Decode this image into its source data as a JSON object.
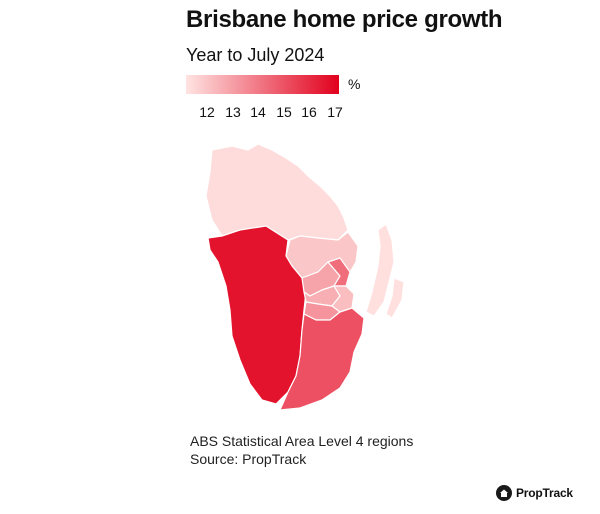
{
  "title": "Brisbane home price growth",
  "subtitle": "Year to July 2024",
  "legend": {
    "unit": "%",
    "ticks": [
      "12",
      "13",
      "14",
      "15",
      "16",
      "17"
    ],
    "min": 11.5,
    "max": 17.5,
    "color_low": "#ffe4e2",
    "color_high": "#e1001d"
  },
  "map": {
    "type": "choropleth",
    "regions": [
      {
        "id": "north",
        "value": 11.7
      },
      {
        "id": "north-east",
        "value": 12.3
      },
      {
        "id": "coastal-strip",
        "value": 11.6
      },
      {
        "id": "west",
        "value": 17.0
      },
      {
        "id": "inner-north",
        "value": 13.2
      },
      {
        "id": "inner-east",
        "value": 14.6
      },
      {
        "id": "inner-central-a",
        "value": 12.9
      },
      {
        "id": "inner-central-b",
        "value": 12.5
      },
      {
        "id": "inner-south",
        "value": 13.6
      },
      {
        "id": "south",
        "value": 15.4
      }
    ]
  },
  "notes": {
    "line1": "ABS Statistical Area Level 4 regions",
    "line2": "Source: PropTrack"
  },
  "brand": {
    "name": "PropTrack",
    "icon": "house-icon"
  }
}
